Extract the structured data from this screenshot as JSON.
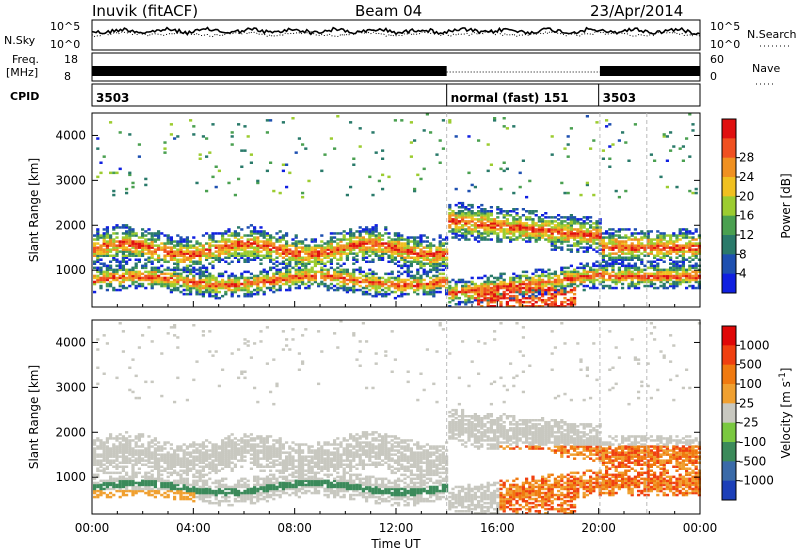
{
  "header": {
    "station": "Inuvik (fitACF)",
    "beam": "Beam 04",
    "date": "23/Apr/2014"
  },
  "strips": {
    "nsky_label": "N.Sky",
    "nsky_ticks": [
      "10^5",
      "10^0"
    ],
    "nsearch_label": "N.Search",
    "nsearch_ticks": [
      "10^5",
      "10^0"
    ],
    "freq_label_line1": "Freq.",
    "freq_label_line2": "[MHz]",
    "freq_ticks": [
      "18",
      "8"
    ],
    "nave_label": "Nave",
    "nave_ticks": [
      "60",
      "0"
    ],
    "cpid_label": "CPID",
    "cpid_segments": [
      {
        "label": "3503",
        "start_hour": 0,
        "end_hour": 14
      },
      {
        "label": "normal (fast) 151",
        "start_hour": 14,
        "end_hour": 20
      },
      {
        "label": "3503",
        "start_hour": 20,
        "end_hour": 24
      }
    ]
  },
  "chart_data": [
    {
      "type": "heatmap",
      "ylabel": "Slant Range [km]",
      "xlabel": "",
      "ylim": [
        180,
        4500
      ],
      "xlim_hours": [
        0,
        24
      ],
      "y_ticks": [
        1000,
        2000,
        3000,
        4000
      ],
      "colorbar": {
        "label": "Power [dB]",
        "ticks": [
          "4",
          "8",
          "12",
          "16",
          "20",
          "24",
          "28"
        ],
        "colors": [
          "#1020e0",
          "#1e50b0",
          "#2a7a6a",
          "#4aa050",
          "#9ccc30",
          "#f0c020",
          "#f09020",
          "#f05020",
          "#e01010"
        ]
      }
    },
    {
      "type": "heatmap",
      "ylabel": "Slant Range [km]",
      "xlabel": "Time UT",
      "ylim": [
        180,
        4500
      ],
      "xlim_hours": [
        0,
        24
      ],
      "y_ticks": [
        1000,
        2000,
        3000,
        4000
      ],
      "x_ticks": [
        "00:00",
        "04:00",
        "08:00",
        "12:00",
        "16:00",
        "20:00",
        "00:00"
      ],
      "colorbar": {
        "label": "Velocity [m s",
        "label_sup": "-1",
        "label_end": "]",
        "ticks": [
          "1000",
          "500",
          "100",
          "25",
          "-25",
          "-100",
          "-500",
          "-1000"
        ],
        "colors": [
          "#1c3fb8",
          "#3a6aa8",
          "#3b8a5a",
          "#7ac840",
          "#c8c8c0",
          "#f0a030",
          "#f07a10",
          "#f04010",
          "#e00808"
        ]
      }
    }
  ]
}
